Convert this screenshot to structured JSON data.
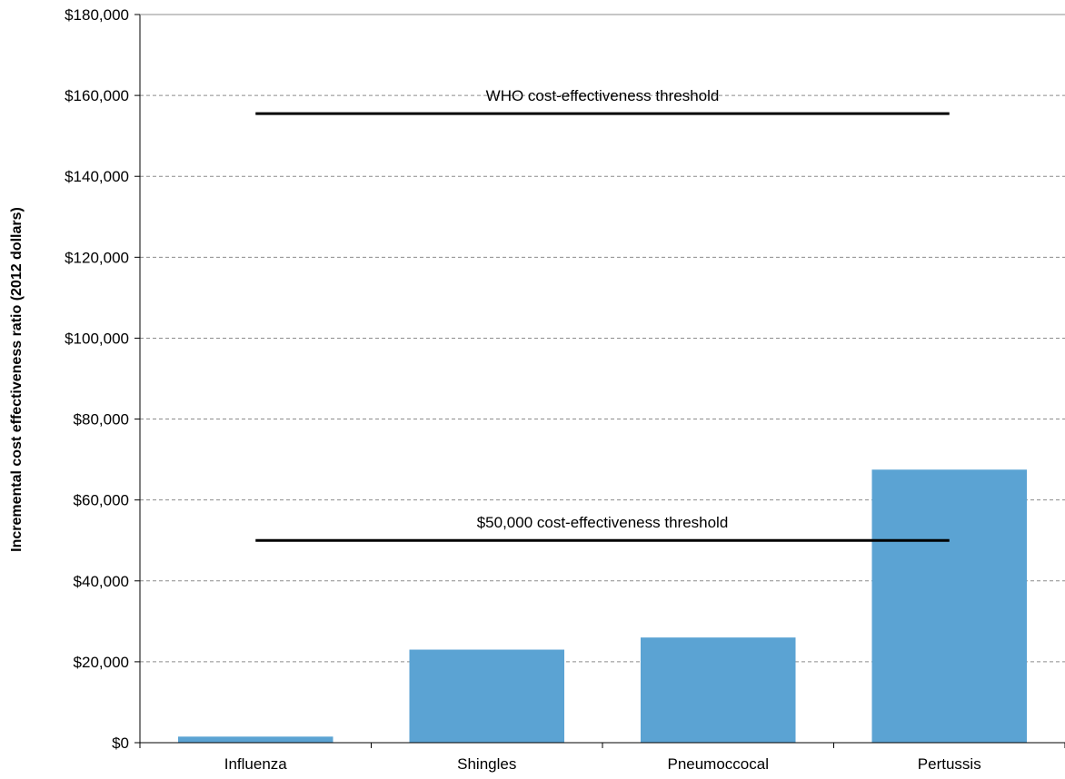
{
  "chart_data": {
    "type": "bar",
    "title": "",
    "xlabel": "",
    "ylabel": "Incremental cost effectiveness ratio (2012 dollars)",
    "categories": [
      "Influenza",
      "Shingles",
      "Pneumoccocal",
      "Pertussis"
    ],
    "values": [
      1500,
      23000,
      26000,
      67500
    ],
    "ylim": [
      0,
      180000
    ],
    "yticks": [
      0,
      20000,
      40000,
      60000,
      80000,
      100000,
      120000,
      140000,
      160000,
      180000
    ],
    "ytick_labels": [
      "$0",
      "$20,000",
      "$40,000",
      "$60,000",
      "$80,000",
      "$100,000",
      "$120,000",
      "$140,000",
      "$160,000",
      "$180,000"
    ],
    "grid": true,
    "legend": "none",
    "bar_color": "#5ba3d3",
    "reference_lines": [
      {
        "label": "WHO cost-effectiveness threshold",
        "value": 155500,
        "from_category": 0,
        "to_category": 3
      },
      {
        "label": "$50,000 cost-effectiveness threshold",
        "value": 50000,
        "from_category": 0,
        "to_category": 3
      }
    ]
  }
}
